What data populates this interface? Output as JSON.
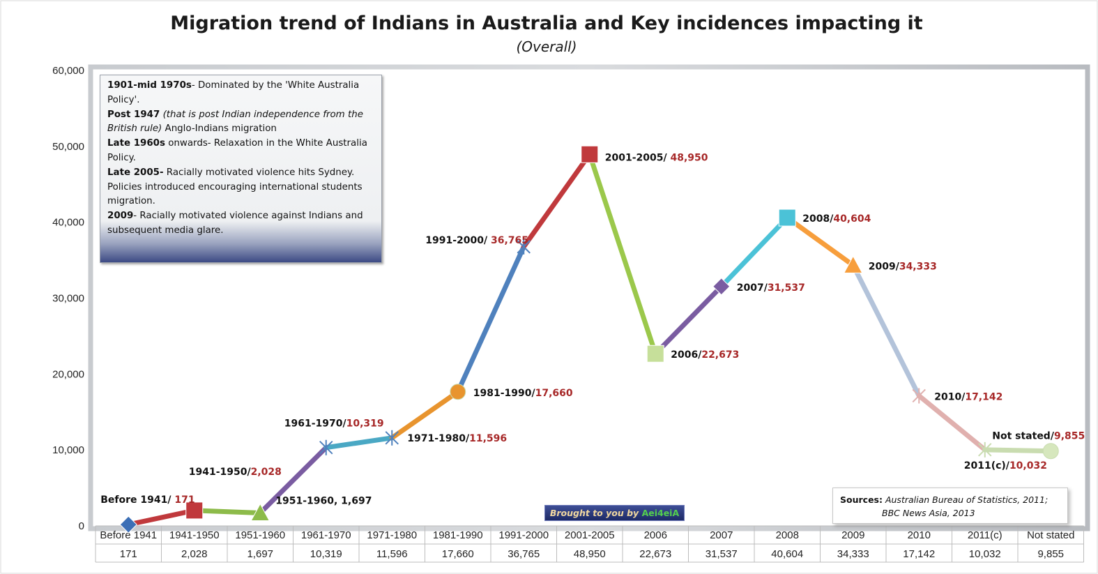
{
  "chart_data": {
    "type": "line",
    "title": "Migration trend of Indians in Australia and Key incidences impacting it",
    "subtitle": "(Overall)",
    "categories": [
      "Before 1941",
      "1941-1950",
      "1951-1960",
      "1961-1970",
      "1971-1980",
      "1981-1990",
      "1991-2000",
      "2001-2005",
      "2006",
      "2007",
      "2008",
      "2009",
      "2010",
      "2011(c)",
      "Not stated"
    ],
    "values": [
      171,
      2028,
      1697,
      10319,
      11596,
      17660,
      36765,
      48950,
      22673,
      31537,
      40604,
      34333,
      17142,
      10032,
      9855
    ],
    "table_values": [
      "171",
      "2,028",
      "1,697",
      "10,319",
      "11,596",
      "17,660",
      "36,765",
      "48,950",
      "22,673",
      "31,537",
      "40,604",
      "34,333",
      "17,142",
      "10,032",
      "9,855"
    ],
    "ylim": [
      0,
      60000
    ],
    "yticks": [
      "0",
      "10,000",
      "20,000",
      "30,000",
      "40,000",
      "50,000",
      "60,000"
    ],
    "grid": false,
    "data_labels": [
      {
        "name": "Before 1941/ ",
        "value": "171"
      },
      {
        "name": "1941-1950/",
        "value": "2,028"
      },
      {
        "name": "1951-1960, 1,697",
        "value": ""
      },
      {
        "name": "1961-1970/",
        "value": "10,319"
      },
      {
        "name": "1971-1980/",
        "value": "11,596"
      },
      {
        "name": "1981-1990/",
        "value": "17,660"
      },
      {
        "name": "1991-2000/ ",
        "value": "36,765"
      },
      {
        "name": "2001-2005/ ",
        "value": "48,950"
      },
      {
        "name": "2006/",
        "value": "22,673"
      },
      {
        "name": "2007/",
        "value": "31,537"
      },
      {
        "name": "2008/",
        "value": "40,604"
      },
      {
        "name": "2009/",
        "value": "34,333"
      },
      {
        "name": "2010/",
        "value": "17,142"
      },
      {
        "name": "2011(c)/",
        "value": "10,032"
      },
      {
        "name": "Not stated/",
        "value": "9,855"
      }
    ],
    "segment_colors": [
      "#c0393c",
      "#8dbb4a",
      "#7a5ca1",
      "#4aa8c4",
      "#e8942e",
      "#4f81bd",
      "#c0393c",
      "#9bc84b",
      "#7a5ca1",
      "#4bc2d7",
      "#f79e3c",
      "#b3c3da",
      "#e0b0ae",
      "#c9dcb0"
    ],
    "marker_shapes": [
      "diamond",
      "square",
      "triangle",
      "star",
      "star",
      "circle",
      "star",
      "square",
      "square",
      "diamond",
      "square",
      "triangle",
      "star",
      "star",
      "circle"
    ],
    "marker_colors": [
      "#3c6fb6",
      "#c0393c",
      "#8dbb4a",
      "#4f81bd",
      "#4f81bd",
      "#e8942e",
      "#4f81bd",
      "#c0393c",
      "#c6df9a",
      "#7a5ca1",
      "#4bc2d7",
      "#f79e3c",
      "#e0b0ae",
      "#c9dcb0",
      "#d6e7bd"
    ]
  },
  "notes": {
    "items": [
      {
        "bold": "1901-mid 1970s",
        "text": "- Dominated by the 'White Australia Policy'."
      },
      {
        "bold": "Post 1947",
        "italic": " (that is post Indian independence from the British rule)",
        "text": " Anglo-Indians migration"
      },
      {
        "bold": "Late 1960s",
        "text": " onwards- Relaxation in the White Australia Policy."
      },
      {
        "bold": "Late 2005-",
        "text": " Racially motivated violence hits Sydney. Policies introduced encouraging international students migration."
      },
      {
        "bold": "2009",
        "text": "- Racially motivated violence  against Indians and subsequent media glare."
      }
    ]
  },
  "sources": {
    "label": "Sources:",
    "line1": " Australian  Bureau of Statistics, 2011;",
    "line2": "BBC News Asia, 2013"
  },
  "credit": {
    "prefix": "Brought to you by ",
    "brand": "Aei4eiA"
  }
}
